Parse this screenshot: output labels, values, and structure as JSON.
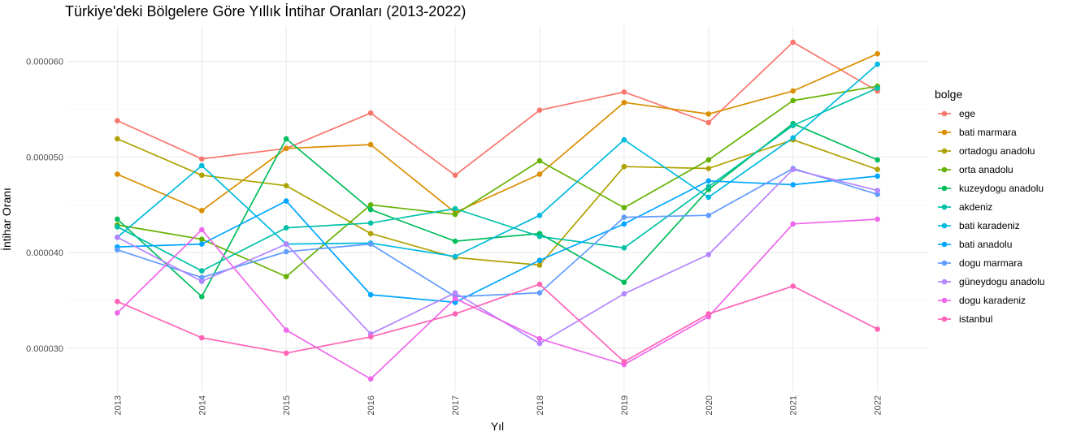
{
  "chart_data": {
    "type": "line",
    "title": "Türkiye'deki Bölgelere Göre Yıllık İntihar Oranları (2013-2022)",
    "xlabel": "Yıl",
    "ylabel": "İntihar Oranı",
    "x": [
      "2013",
      "2014",
      "2015",
      "2016",
      "2017",
      "2018",
      "2019",
      "2020",
      "2021",
      "2022"
    ],
    "ylim": [
      2.55e-05,
      6.37e-05
    ],
    "yticks": [
      3e-05,
      4e-05,
      5e-05,
      6e-05
    ],
    "ytick_labels": [
      "0.000030",
      "0.000040",
      "0.000050",
      "0.000060"
    ],
    "grid": true,
    "legend": {
      "title": "bolge",
      "position": "right"
    },
    "series": [
      {
        "name": "ege",
        "color": "#F8766D",
        "values": [
          5.38e-05,
          4.98e-05,
          5.09e-05,
          5.46e-05,
          4.81e-05,
          5.49e-05,
          5.68e-05,
          5.36e-05,
          6.2e-05,
          5.69e-05
        ]
      },
      {
        "name": "bati marmara",
        "color": "#DB8E00",
        "values": [
          4.82e-05,
          4.44e-05,
          5.09e-05,
          5.13e-05,
          4.42e-05,
          4.82e-05,
          5.57e-05,
          5.45e-05,
          5.69e-05,
          6.08e-05
        ]
      },
      {
        "name": "ortadogu anadolu",
        "color": "#AEA200",
        "values": [
          5.19e-05,
          4.81e-05,
          4.7e-05,
          4.2e-05,
          3.95e-05,
          3.87e-05,
          4.9e-05,
          4.88e-05,
          5.18e-05,
          4.87e-05
        ]
      },
      {
        "name": "orta anadolu",
        "color": "#64B200",
        "values": [
          4.29e-05,
          4.14e-05,
          3.75e-05,
          4.5e-05,
          4.4e-05,
          4.96e-05,
          4.47e-05,
          4.97e-05,
          5.59e-05,
          5.74e-05
        ]
      },
      {
        "name": "kuzeydogu anadolu",
        "color": "#00BD5C",
        "values": [
          4.35e-05,
          3.54e-05,
          5.19e-05,
          4.45e-05,
          4.12e-05,
          4.2e-05,
          3.69e-05,
          4.66e-05,
          5.35e-05,
          4.97e-05
        ]
      },
      {
        "name": "akdeniz",
        "color": "#00C1A7",
        "values": [
          4.27e-05,
          3.81e-05,
          4.26e-05,
          4.31e-05,
          4.46e-05,
          4.17e-05,
          4.05e-05,
          4.69e-05,
          5.33e-05,
          5.72e-05
        ]
      },
      {
        "name": "bati karadeniz",
        "color": "#00BADE",
        "values": [
          4.16e-05,
          4.91e-05,
          4.09e-05,
          4.1e-05,
          3.96e-05,
          4.39e-05,
          5.18e-05,
          4.58e-05,
          5.2e-05,
          5.97e-05
        ]
      },
      {
        "name": "bati anadolu",
        "color": "#00A6FF",
        "values": [
          4.06e-05,
          4.09e-05,
          4.54e-05,
          3.56e-05,
          3.48e-05,
          3.92e-05,
          4.3e-05,
          4.75e-05,
          4.71e-05,
          4.8e-05
        ]
      },
      {
        "name": "dogu marmara",
        "color": "#619CFF",
        "values": [
          4.03e-05,
          3.74e-05,
          4.01e-05,
          4.09e-05,
          3.54e-05,
          3.58e-05,
          4.37e-05,
          4.39e-05,
          4.88e-05,
          4.61e-05
        ]
      },
      {
        "name": "güneydogu anadolu",
        "color": "#B385FF",
        "values": [
          4.16e-05,
          3.7e-05,
          4.09e-05,
          3.15e-05,
          3.58e-05,
          3.05e-05,
          3.57e-05,
          3.98e-05,
          4.87e-05,
          4.65e-05
        ]
      },
      {
        "name": "dogu karadeniz",
        "color": "#EF67EB",
        "values": [
          3.37e-05,
          4.24e-05,
          3.19e-05,
          2.68e-05,
          3.52e-05,
          3.1e-05,
          2.83e-05,
          3.33e-05,
          4.3e-05,
          4.35e-05
        ]
      },
      {
        "name": "istanbul",
        "color": "#FF63B6",
        "values": [
          3.49e-05,
          3.11e-05,
          2.95e-05,
          3.12e-05,
          3.36e-05,
          3.67e-05,
          2.86e-05,
          3.36e-05,
          3.65e-05,
          3.2e-05
        ]
      }
    ]
  }
}
